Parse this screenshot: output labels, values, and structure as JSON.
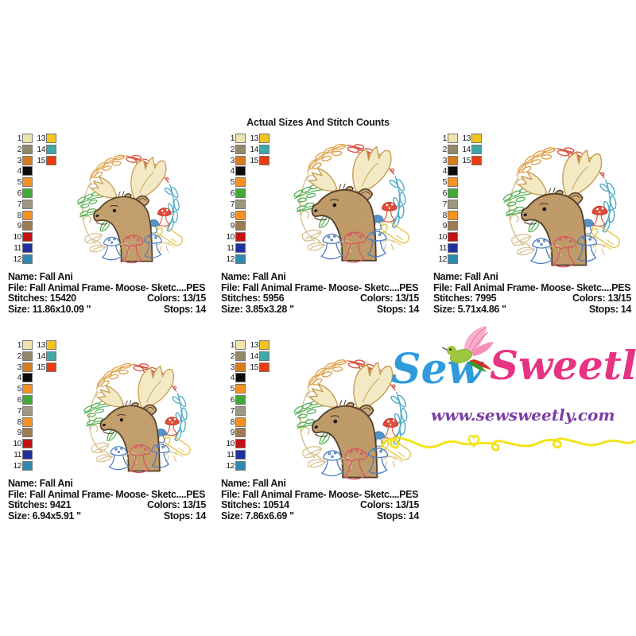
{
  "title": "Actual Sizes And Stitch Counts",
  "labels": {
    "name": "Name:",
    "file": "File:",
    "stitches": "Stitches:",
    "colors": "Colors:",
    "size": "Size:",
    "stops": "Stops:"
  },
  "panels": [
    {
      "name": "Fall Ani",
      "file": "Fall Animal Frame- Moose- Sketc....PES",
      "stitches": "15420",
      "colors": "13/15",
      "size": "11.86x10.09 \"",
      "stops": "14"
    },
    {
      "name": "Fall Ani",
      "file": "Fall Animal Frame- Moose- Sketc....PES",
      "stitches": "5956",
      "colors": "13/15",
      "size": "3.85x3.28 \"",
      "stops": "14"
    },
    {
      "name": "Fall Ani",
      "file": "Fall Animal Frame- Moose- Sketc....PES",
      "stitches": "7995",
      "colors": "13/15",
      "size": "5.71x4.86 \"",
      "stops": "14"
    },
    {
      "name": "Fall Ani",
      "file": "Fall Animal Frame- Moose- Sketc....PES",
      "stitches": "9421",
      "colors": "13/15",
      "size": "6.94x5.91 \"",
      "stops": "14"
    },
    {
      "name": "Fall Ani",
      "file": "Fall Animal Frame- Moose- Sketc....PES",
      "stitches": "10514",
      "colors": "13/15",
      "size": "7.86x6.69 \"",
      "stops": "14"
    }
  ],
  "palette": {
    "rows": [
      {
        "n": "1",
        "color": "#EFE3AF",
        "n2": "13",
        "color2": "#F3C31F"
      },
      {
        "n": "2",
        "color": "#94886B",
        "n2": "14",
        "color2": "#41A7A7"
      },
      {
        "n": "3",
        "color": "#D97C20",
        "n2": "15",
        "color2": "#E93C0F"
      },
      {
        "n": "4",
        "color": "#0B0B0B"
      },
      {
        "n": "5",
        "color": "#F6921F"
      },
      {
        "n": "6",
        "color": "#41A936"
      },
      {
        "n": "7",
        "color": "#9C9881"
      },
      {
        "n": "8",
        "color": "#F6921F"
      },
      {
        "n": "9",
        "color": "#9D7C52"
      },
      {
        "n": "10",
        "color": "#C41111"
      },
      {
        "n": "11",
        "color": "#22309F"
      },
      {
        "n": "12",
        "color": "#2F88AD"
      }
    ]
  },
  "logo": {
    "word1": "Sew",
    "word2": "Sweetly",
    "website": "www.sewsweetly.com",
    "word1_color": "#2F9BDD",
    "word2_color": "#E73383",
    "website_color": "#7C3FA5",
    "squiggle_color": "#F2E41C"
  },
  "design": {
    "subject": "moose head in autumn leaf wreath with mushrooms",
    "accent_colors": {
      "orange_branch": "#E0A34D",
      "red_branch": "#D85443",
      "teal_branch": "#4FAAC4",
      "green_leaves": "#55B055",
      "cream_branch": "#D9C28F",
      "yellow_log": "#E3C348",
      "blue_mushroom": "#4C7CBF",
      "red_mushroom": "#D85563",
      "moose_fill": "#CBA877",
      "moose_outline": "#54402A",
      "antler_fill": "#F3E9C5"
    }
  }
}
